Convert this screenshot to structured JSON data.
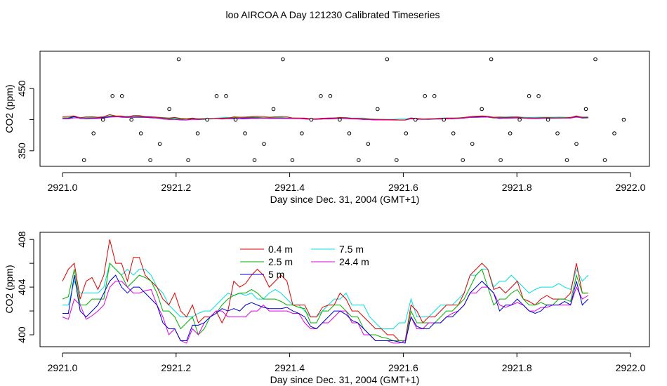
{
  "title": "loo AIRCOA A  Day 121230  Calibrated Timeseries",
  "colors": {
    "0.4 m": "#e00000",
    "2.5 m": "#00b000",
    "5 m": "#0000cc",
    "7.5 m": "#00e0e0",
    "24.4 m": "#e000e0",
    "markers": "#000000"
  },
  "chart_data": [
    {
      "type": "line",
      "xlabel": "Day since Dec. 31, 2004 (GMT+1)",
      "ylabel": "CO2 (ppm)",
      "xlim": [
        2921.0,
        2922.0
      ],
      "ylim": [
        325,
        510
      ],
      "x_ticks": [
        "2921.0",
        "2921.2",
        "2921.4",
        "2921.6",
        "2921.8",
        "2922.0"
      ],
      "x_tick_values": [
        2921.0,
        2921.2,
        2921.4,
        2921.6,
        2921.8,
        2922.0
      ],
      "y_ticks": [
        "350",
        "450"
      ],
      "y_tick_values": [
        350,
        400,
        450
      ],
      "markers_y": [
        335,
        378,
        400,
        438,
        438,
        400,
        378,
        335,
        361,
        417,
        497
      ],
      "markers_x_start": 2921.038,
      "markers_x_step": 0.01667,
      "grid": false,
      "legend": "none"
    },
    {
      "type": "line",
      "xlabel": "Day since Dec. 31, 2004 (GMT+1)",
      "ylabel": "CO2 (ppm)",
      "xlim": [
        2921.0,
        2922.0
      ],
      "ylim": [
        399,
        408.6
      ],
      "x_ticks": [
        "2921.0",
        "2921.2",
        "2921.4",
        "2921.6",
        "2921.8",
        "2922.0"
      ],
      "x_tick_values": [
        2921.0,
        2921.2,
        2921.4,
        2921.6,
        2921.8,
        2922.0
      ],
      "y_ticks": [
        "400",
        "404",
        "408"
      ],
      "y_tick_values": [
        400,
        402,
        404,
        406,
        408
      ],
      "grid": false,
      "legend": "top-left",
      "legend_entries": [
        "0.4 m",
        "2.5 m",
        "5 m",
        "7.5 m",
        "24.4 m"
      ],
      "x_start": 2921.0,
      "x_step": 0.0104,
      "series": [
        {
          "name": "0.4 m",
          "values": [
            404.5,
            405.5,
            406.0,
            403.0,
            404.5,
            404.8,
            403.8,
            405.0,
            408.0,
            406.0,
            406.0,
            404.5,
            406.5,
            406.5,
            405.0,
            404.5,
            404.0,
            403.0,
            402.5,
            403.5,
            402.0,
            401.5,
            402.5,
            401.0,
            401.5,
            401.5,
            402.0,
            401.0,
            402.0,
            404.5,
            404.0,
            404.3,
            405.0,
            405.5,
            405.0,
            404.0,
            404.5,
            405.0,
            404.5,
            402.5,
            402.5,
            402.5,
            401.5,
            401.5,
            402.3,
            402.5,
            402.5,
            403.5,
            403.0,
            402.0,
            402.0,
            401.5,
            401.0,
            400.5,
            400.5,
            400.0,
            400.0,
            399.5,
            399.5,
            402.5,
            402.0,
            401.0,
            401.5,
            401.5,
            402.0,
            402.5,
            402.5,
            402.5,
            403.5,
            405.0,
            405.5,
            406.0,
            405.5,
            403.8,
            404.0,
            403.5,
            404.0,
            404.5,
            403.0,
            402.8,
            402.5,
            403.0,
            403.3,
            403.0,
            403.0,
            403.0,
            403.5,
            406.0,
            403.5,
            403.5
          ]
        },
        {
          "name": "2.5 m",
          "values": [
            403.0,
            403.2,
            405.5,
            402.5,
            402.5,
            403.0,
            403.0,
            403.0,
            406.0,
            405.5,
            405.0,
            404.0,
            404.5,
            405.0,
            404.8,
            404.5,
            403.5,
            402.0,
            402.0,
            401.5,
            400.5,
            401.0,
            401.5,
            400.0,
            400.5,
            401.5,
            401.8,
            402.5,
            403.0,
            403.3,
            403.5,
            403.5,
            403.8,
            403.5,
            403.0,
            403.0,
            403.0,
            402.8,
            402.5,
            402.5,
            402.3,
            402.2,
            401.0,
            401.0,
            402.0,
            402.0,
            402.5,
            402.5,
            402.0,
            401.5,
            401.5,
            400.5,
            400.0,
            400.0,
            399.8,
            399.7,
            399.5,
            399.5,
            399.5,
            402.0,
            401.0,
            401.0,
            401.0,
            401.0,
            401.5,
            402.0,
            402.0,
            402.5,
            403.0,
            404.0,
            405.0,
            405.5,
            404.0,
            402.5,
            403.0,
            403.0,
            403.5,
            403.8,
            403.0,
            402.5,
            402.5,
            402.7,
            402.5,
            402.5,
            403.0,
            403.0,
            402.8,
            405.0,
            403.5,
            403.5
          ]
        },
        {
          "name": "5 m",
          "values": [
            401.8,
            401.8,
            405.0,
            402.0,
            401.5,
            402.0,
            402.5,
            403.5,
            404.5,
            405.0,
            404.0,
            403.5,
            404.0,
            404.0,
            403.5,
            403.0,
            402.5,
            401.0,
            400.5,
            400.5,
            399.5,
            399.5,
            400.8,
            400.8,
            401.0,
            401.5,
            401.8,
            402.2,
            402.0,
            402.2,
            402.0,
            402.5,
            402.7,
            402.5,
            402.3,
            402.2,
            402.2,
            402.2,
            402.3,
            402.0,
            401.8,
            401.5,
            400.7,
            400.5,
            401.0,
            401.5,
            402.0,
            402.0,
            401.7,
            401.2,
            401.0,
            400.5,
            400.0,
            399.5,
            399.5,
            399.5,
            399.5,
            399.4,
            399.3,
            401.5,
            400.7,
            400.5,
            400.5,
            401.0,
            401.0,
            401.5,
            401.5,
            402.0,
            402.5,
            403.5,
            404.0,
            404.5,
            404.0,
            403.5,
            402.0,
            402.5,
            402.5,
            403.0,
            402.5,
            402.0,
            401.8,
            402.0,
            402.5,
            402.5,
            402.5,
            402.8,
            402.5,
            404.5,
            402.5,
            403.0
          ]
        },
        {
          "name": "7.5 m",
          "values": [
            402.5,
            402.5,
            404.5,
            403.5,
            403.5,
            403.5,
            403.5,
            404.0,
            406.0,
            405.5,
            405.0,
            405.5,
            405.0,
            405.5,
            405.5,
            405.0,
            404.0,
            403.5,
            402.5,
            402.0,
            401.5,
            401.5,
            401.5,
            401.8,
            402.0,
            402.0,
            402.5,
            403.0,
            403.5,
            403.3,
            403.5,
            403.3,
            403.5,
            403.0,
            403.0,
            403.5,
            403.8,
            403.5,
            403.0,
            402.5,
            402.5,
            402.0,
            401.5,
            401.5,
            402.0,
            402.5,
            403.0,
            403.0,
            403.5,
            402.5,
            402.5,
            402.5,
            401.5,
            401.0,
            400.5,
            400.5,
            400.5,
            401.0,
            401.0,
            403.0,
            401.5,
            401.5,
            401.5,
            402.0,
            402.5,
            402.5,
            402.5,
            403.0,
            403.5,
            405.0,
            405.0,
            405.5,
            405.5,
            404.0,
            404.5,
            404.5,
            405.0,
            404.5,
            404.0,
            403.5,
            403.8,
            404.0,
            404.0,
            404.0,
            404.3,
            404.0,
            403.8,
            405.5,
            404.5,
            405.0
          ]
        },
        {
          "name": "24.4 m",
          "values": [
            401.5,
            401.3,
            403.0,
            402.5,
            401.3,
            401.6,
            402.0,
            402.5,
            404.0,
            404.5,
            404.5,
            404.0,
            403.5,
            403.5,
            403.7,
            403.8,
            402.5,
            401.5,
            400.0,
            400.5,
            399.5,
            399.3,
            400.5,
            400.0,
            401.0,
            401.5,
            402.0,
            402.0,
            401.5,
            401.5,
            401.5,
            401.5,
            402.0,
            402.0,
            402.5,
            402.0,
            402.0,
            402.0,
            402.0,
            401.8,
            401.8,
            401.0,
            400.5,
            400.5,
            401.0,
            401.0,
            401.5,
            402.0,
            402.0,
            401.0,
            401.0,
            400.0,
            400.0,
            399.5,
            399.5,
            399.5,
            399.3,
            399.3,
            399.5,
            401.5,
            400.5,
            400.5,
            401.0,
            401.0,
            401.0,
            401.5,
            401.8,
            402.0,
            402.5,
            403.5,
            403.5,
            404.0,
            404.0,
            403.5,
            402.5,
            402.3,
            402.5,
            402.7,
            402.5,
            402.0,
            402.0,
            402.3,
            402.3,
            402.5,
            402.5,
            402.5,
            402.5,
            404.0,
            403.0,
            403.3
          ]
        }
      ]
    }
  ]
}
